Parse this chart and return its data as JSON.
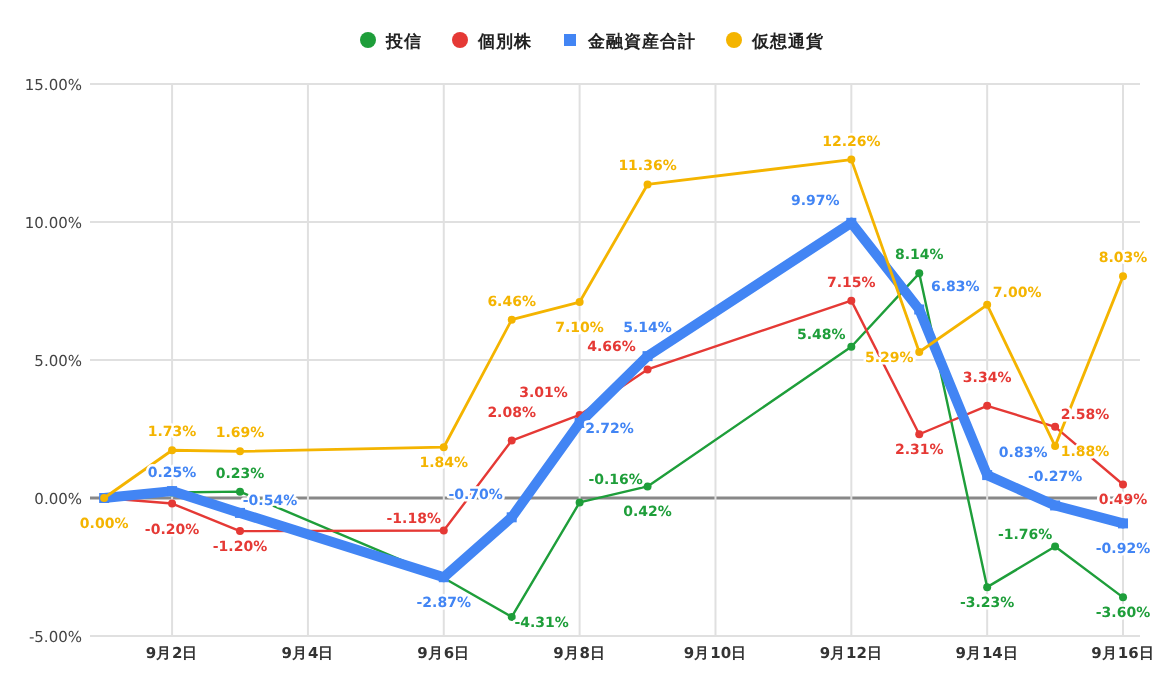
{
  "chart_data": {
    "type": "line",
    "x": [
      "--09-01",
      "--09-02",
      "--09-03",
      "--09-06",
      "--09-07",
      "--09-08",
      "--09-09",
      "--09-12",
      "--09-13",
      "--09-14",
      "--09-15",
      "--09-16"
    ],
    "xlim": [
      "--08-31T19:00",
      "--09-16T06:00"
    ],
    "xticks": [
      {
        "value": "--09-02",
        "label": "9月2日"
      },
      {
        "value": "--09-04",
        "label": "9月4日"
      },
      {
        "value": "--09-06",
        "label": "9月6日"
      },
      {
        "value": "--09-08",
        "label": "9月8日"
      },
      {
        "value": "--09-10",
        "label": "9月10日"
      },
      {
        "value": "--09-12",
        "label": "9月12日"
      },
      {
        "value": "--09-14",
        "label": "9月14日"
      },
      {
        "value": "--09-16",
        "label": "9月16日"
      }
    ],
    "ylim": [
      -5,
      15
    ],
    "yticks": [
      {
        "value": -5,
        "label": "-5.00%"
      },
      {
        "value": 0,
        "label": "0.00%"
      },
      {
        "value": 5,
        "label": "5.00%"
      },
      {
        "value": 10,
        "label": "10.00%"
      },
      {
        "value": 15,
        "label": "15.00%"
      }
    ],
    "grid": true,
    "legend": "top",
    "marker": "circle",
    "line_style": "solid",
    "series": [
      {
        "name": "投信",
        "color": "#1e9e3a",
        "values": [
          0,
          0.2,
          0.23,
          -2.9,
          -4.31,
          -0.16,
          0.42,
          5.48,
          8.14,
          -3.23,
          -1.76,
          -3.6
        ],
        "value_labels": [
          null,
          null,
          "0.23%",
          null,
          "-4.31%",
          "-0.16%",
          "0.42%",
          "5.48%",
          "8.14%",
          "-3.23%",
          "-1.76%",
          "-3.60%"
        ]
      },
      {
        "name": "個別株",
        "color": "#e53935",
        "values": [
          0,
          -0.2,
          -1.2,
          -1.18,
          2.08,
          3.01,
          4.66,
          7.15,
          2.31,
          3.34,
          2.58,
          0.49
        ],
        "value_labels": [
          null,
          "-0.20%",
          "-1.20%",
          "-1.18%",
          "2.08%",
          "3.01%",
          "4.66%",
          "7.15%",
          "2.31%",
          "3.34%",
          "2.58%",
          "0.49%"
        ]
      },
      {
        "name": "金融資産合計",
        "color": "#4285f4",
        "marker": "square",
        "values": [
          0,
          0.25,
          -0.54,
          -2.87,
          -0.7,
          2.72,
          5.14,
          9.97,
          6.83,
          0.83,
          -0.27,
          -0.92
        ],
        "value_labels": [
          null,
          "0.25%",
          "-0.54%",
          "-2.87%",
          "-0.70%",
          "2.72%",
          "5.14%",
          "9.97%",
          "6.83%",
          "0.83%",
          "-0.27%",
          "-0.92%"
        ]
      },
      {
        "name": "仮想通貨",
        "color": "#f4b400",
        "values": [
          0,
          1.73,
          1.69,
          1.84,
          6.46,
          7.1,
          11.36,
          12.26,
          5.29,
          7.0,
          1.88,
          8.03
        ],
        "value_labels": [
          "0.00%",
          "1.73%",
          "1.69%",
          "1.84%",
          "6.46%",
          "7.10%",
          "11.36%",
          "12.26%",
          "5.29%",
          "7.00%",
          "1.88%",
          "8.03%"
        ]
      }
    ]
  }
}
